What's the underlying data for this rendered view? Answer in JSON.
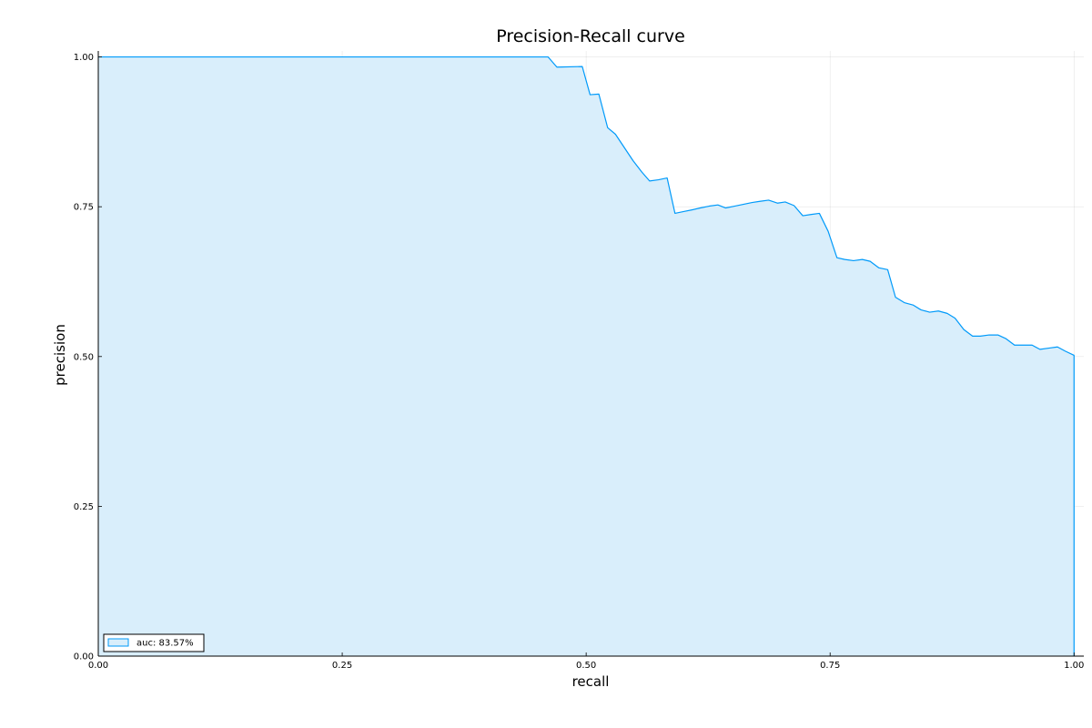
{
  "chart_data": {
    "type": "area",
    "title": "Precision-Recall curve",
    "xlabel": "recall",
    "ylabel": "precision",
    "xlim": [
      0,
      1.01
    ],
    "ylim": [
      0,
      1.01
    ],
    "grid": true,
    "legend_position": "bottom-left",
    "x_ticks": [
      0,
      0.25,
      0.5,
      0.75,
      1.0
    ],
    "x_tick_labels": [
      "0.00",
      "0.25",
      "0.50",
      "0.75",
      "1.00"
    ],
    "y_ticks": [
      0,
      0.25,
      0.5,
      0.75,
      1.0
    ],
    "y_tick_labels": [
      "0.00",
      "0.25",
      "0.50",
      "0.75",
      "1.00"
    ],
    "series": [
      {
        "name": "auc: 83.57%",
        "color": "#009AFA",
        "fill_color": "#D9EEFB",
        "x": [
          0.0,
          0.461,
          0.47,
          0.496,
          0.504,
          0.513,
          0.522,
          0.53,
          0.539,
          0.548,
          0.557,
          0.565,
          0.574,
          0.583,
          0.591,
          0.6,
          0.609,
          0.617,
          0.626,
          0.635,
          0.643,
          0.652,
          0.661,
          0.67,
          0.678,
          0.687,
          0.696,
          0.704,
          0.713,
          0.722,
          0.73,
          0.739,
          0.748,
          0.757,
          0.765,
          0.774,
          0.783,
          0.791,
          0.8,
          0.809,
          0.817,
          0.826,
          0.835,
          0.843,
          0.852,
          0.861,
          0.87,
          0.878,
          0.887,
          0.896,
          0.904,
          0.913,
          0.922,
          0.93,
          0.939,
          0.948,
          0.957,
          0.965,
          0.974,
          0.983,
          0.991,
          1.0,
          1.0
        ],
        "y": [
          1.0,
          1.0,
          0.983,
          0.984,
          0.937,
          0.938,
          0.882,
          0.871,
          0.849,
          0.827,
          0.808,
          0.793,
          0.795,
          0.798,
          0.739,
          0.742,
          0.745,
          0.748,
          0.751,
          0.753,
          0.748,
          0.751,
          0.754,
          0.757,
          0.759,
          0.761,
          0.756,
          0.758,
          0.752,
          0.735,
          0.737,
          0.739,
          0.709,
          0.665,
          0.662,
          0.66,
          0.662,
          0.659,
          0.648,
          0.645,
          0.599,
          0.59,
          0.586,
          0.578,
          0.574,
          0.576,
          0.572,
          0.564,
          0.545,
          0.534,
          0.534,
          0.536,
          0.536,
          0.53,
          0.519,
          0.519,
          0.519,
          0.512,
          0.514,
          0.516,
          0.509,
          0.502,
          0.0
        ]
      }
    ]
  }
}
